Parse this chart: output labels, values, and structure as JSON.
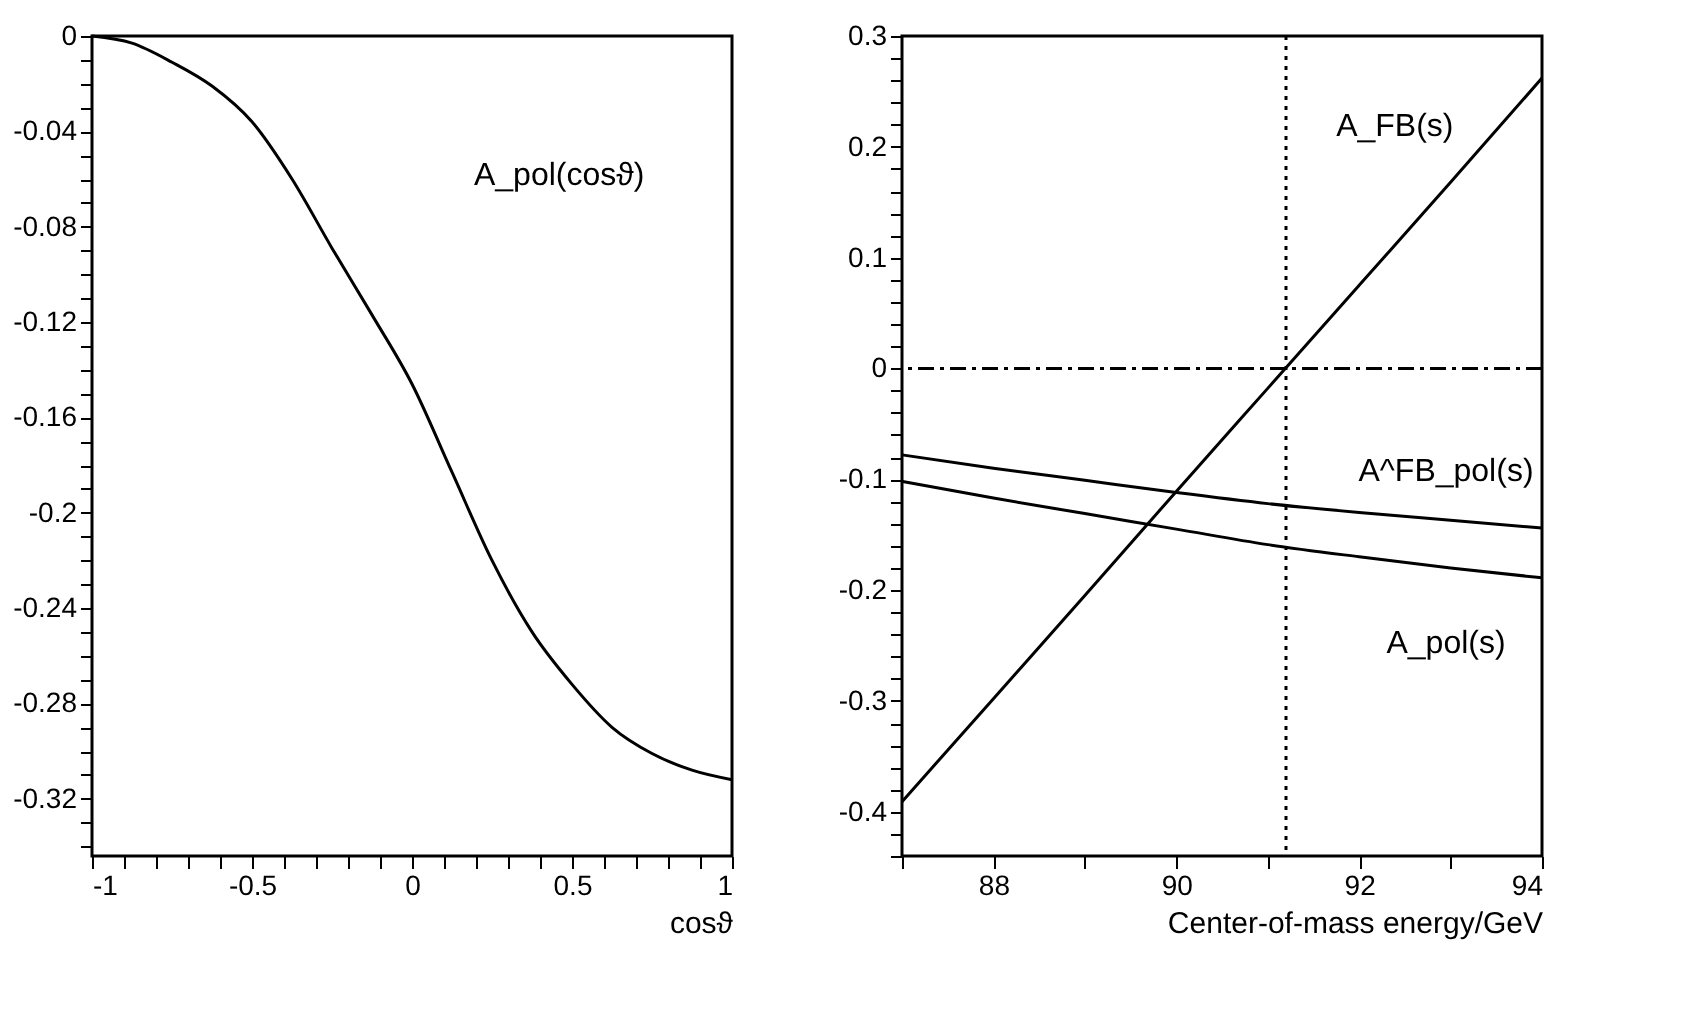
{
  "chart_data": [
    {
      "type": "line",
      "xlabel": "cosϑ",
      "x": [
        -1,
        -0.875,
        -0.75,
        -0.625,
        -0.5,
        -0.375,
        -0.25,
        -0.125,
        0,
        0.125,
        0.25,
        0.375,
        0.5,
        0.625,
        0.75,
        0.875,
        1
      ],
      "series": [
        {
          "color": "#000000",
          "values": [
            0,
            -0.003,
            -0.011,
            -0.021,
            -0.036,
            -0.06,
            -0.089,
            -0.117,
            -0.146,
            -0.183,
            -0.22,
            -0.25,
            -0.272,
            -0.29,
            -0.301,
            -0.308,
            -0.312
          ]
        }
      ],
      "xlim": [
        -1,
        1
      ],
      "ylim": [
        -0.344,
        0
      ],
      "xticks": [
        -1,
        {
          "value": -0.9,
          "label": null
        },
        {
          "value": -0.8,
          "label": null
        },
        {
          "value": -0.7,
          "label": null
        },
        {
          "value": -0.6,
          "label": null
        },
        -0.5,
        {
          "value": -0.4,
          "label": null
        },
        {
          "value": -0.3,
          "label": null
        },
        {
          "value": -0.2,
          "label": null
        },
        {
          "value": -0.1,
          "label": null
        },
        0,
        {
          "value": 0.1,
          "label": null
        },
        {
          "value": 0.2,
          "label": null
        },
        {
          "value": 0.3,
          "label": null
        },
        {
          "value": 0.4,
          "label": null
        },
        0.5,
        {
          "value": 0.6,
          "label": null
        },
        {
          "value": 0.7,
          "label": null
        },
        {
          "value": 0.8,
          "label": null
        },
        {
          "value": 0.9,
          "label": null
        },
        1
      ],
      "yticks": [
        0,
        {
          "value": -0.01,
          "label": null
        },
        {
          "value": -0.02,
          "label": null
        },
        {
          "value": -0.03,
          "label": null
        },
        -0.04,
        {
          "value": -0.05,
          "label": null
        },
        {
          "value": -0.06,
          "label": null
        },
        {
          "value": -0.07,
          "label": null
        },
        -0.08,
        {
          "value": -0.09,
          "label": null
        },
        {
          "value": -0.1,
          "label": null
        },
        {
          "value": -0.11,
          "label": null
        },
        -0.12,
        {
          "value": -0.13,
          "label": null
        },
        {
          "value": -0.14,
          "label": null
        },
        {
          "value": -0.15,
          "label": null
        },
        -0.16,
        {
          "value": -0.17,
          "label": null
        },
        {
          "value": -0.18,
          "label": null
        },
        {
          "value": -0.19,
          "label": null
        },
        -0.2,
        {
          "value": -0.21,
          "label": null
        },
        {
          "value": -0.22,
          "label": null
        },
        {
          "value": -0.23,
          "label": null
        },
        -0.24,
        {
          "value": -0.25,
          "label": null
        },
        {
          "value": -0.26,
          "label": null
        },
        {
          "value": -0.27,
          "label": null
        },
        -0.28,
        {
          "value": -0.29,
          "label": null
        },
        {
          "value": -0.3,
          "label": null
        },
        {
          "value": -0.31,
          "label": null
        },
        -0.32,
        {
          "value": -0.33,
          "label": null
        },
        {
          "value": -0.34,
          "label": null
        }
      ],
      "annotations": [
        "A_pol(cosϑ)"
      ],
      "grid": false,
      "marker": "none",
      "line_style": "solid"
    },
    {
      "type": "line",
      "xlabel": "Center-of-mass energy/GeV",
      "x": [
        87,
        88,
        89,
        90,
        91,
        92,
        93,
        94
      ],
      "series": [
        {
          "color": "#000000",
          "values": [
            -0.391,
            -0.298,
            -0.205,
            -0.111,
            -0.018,
            0.075,
            0.168,
            0.262
          ]
        },
        {
          "color": "#000000",
          "values": [
            -0.078,
            -0.09,
            -0.101,
            -0.112,
            -0.122,
            -0.13,
            -0.137,
            -0.144
          ]
        },
        {
          "color": "#000000",
          "values": [
            -0.102,
            -0.117,
            -0.131,
            -0.145,
            -0.159,
            -0.17,
            -0.18,
            -0.189
          ]
        }
      ],
      "xlim": [
        87,
        94
      ],
      "ylim": [
        -0.44,
        0.3
      ],
      "xticks": [
        {
          "value": 87,
          "label": null
        },
        88,
        {
          "value": 89,
          "label": null
        },
        90,
        {
          "value": 91,
          "label": null
        },
        92,
        {
          "value": 93,
          "label": null
        },
        94
      ],
      "yticks": [
        0.3,
        {
          "value": 0.28,
          "label": null
        },
        {
          "value": 0.26,
          "label": null
        },
        {
          "value": 0.24,
          "label": null
        },
        {
          "value": 0.22,
          "label": null
        },
        0.2,
        {
          "value": 0.18,
          "label": null
        },
        {
          "value": 0.16,
          "label": null
        },
        {
          "value": 0.14,
          "label": null
        },
        {
          "value": 0.12,
          "label": null
        },
        0.1,
        {
          "value": 0.08,
          "label": null
        },
        {
          "value": 0.06,
          "label": null
        },
        {
          "value": 0.04,
          "label": null
        },
        {
          "value": 0.02,
          "label": null
        },
        0,
        {
          "value": -0.02,
          "label": null
        },
        {
          "value": -0.04,
          "label": null
        },
        {
          "value": -0.06,
          "label": null
        },
        {
          "value": -0.08,
          "label": null
        },
        -0.1,
        {
          "value": -0.12,
          "label": null
        },
        {
          "value": -0.14,
          "label": null
        },
        {
          "value": -0.16,
          "label": null
        },
        {
          "value": -0.18,
          "label": null
        },
        -0.2,
        {
          "value": -0.22,
          "label": null
        },
        {
          "value": -0.24,
          "label": null
        },
        {
          "value": -0.26,
          "label": null
        },
        {
          "value": -0.28,
          "label": null
        },
        -0.3,
        {
          "value": -0.32,
          "label": null
        },
        {
          "value": -0.34,
          "label": null
        },
        {
          "value": -0.36,
          "label": null
        },
        {
          "value": -0.38,
          "label": null
        },
        -0.4,
        {
          "value": -0.42,
          "label": null
        },
        {
          "value": -0.44,
          "label": null
        }
      ],
      "ref_lines": [
        {
          "axis": "y",
          "value": 0,
          "line_style": "dashed",
          "color": "#000000"
        },
        {
          "axis": "x",
          "value": 91.2,
          "line_style": "dotted",
          "color": "#000000"
        }
      ],
      "annotations": [
        "A_FB(s)",
        "A^FB_pol(s)",
        "A_pol(s)"
      ],
      "grid": false,
      "marker": "none",
      "line_style": "solid"
    }
  ]
}
